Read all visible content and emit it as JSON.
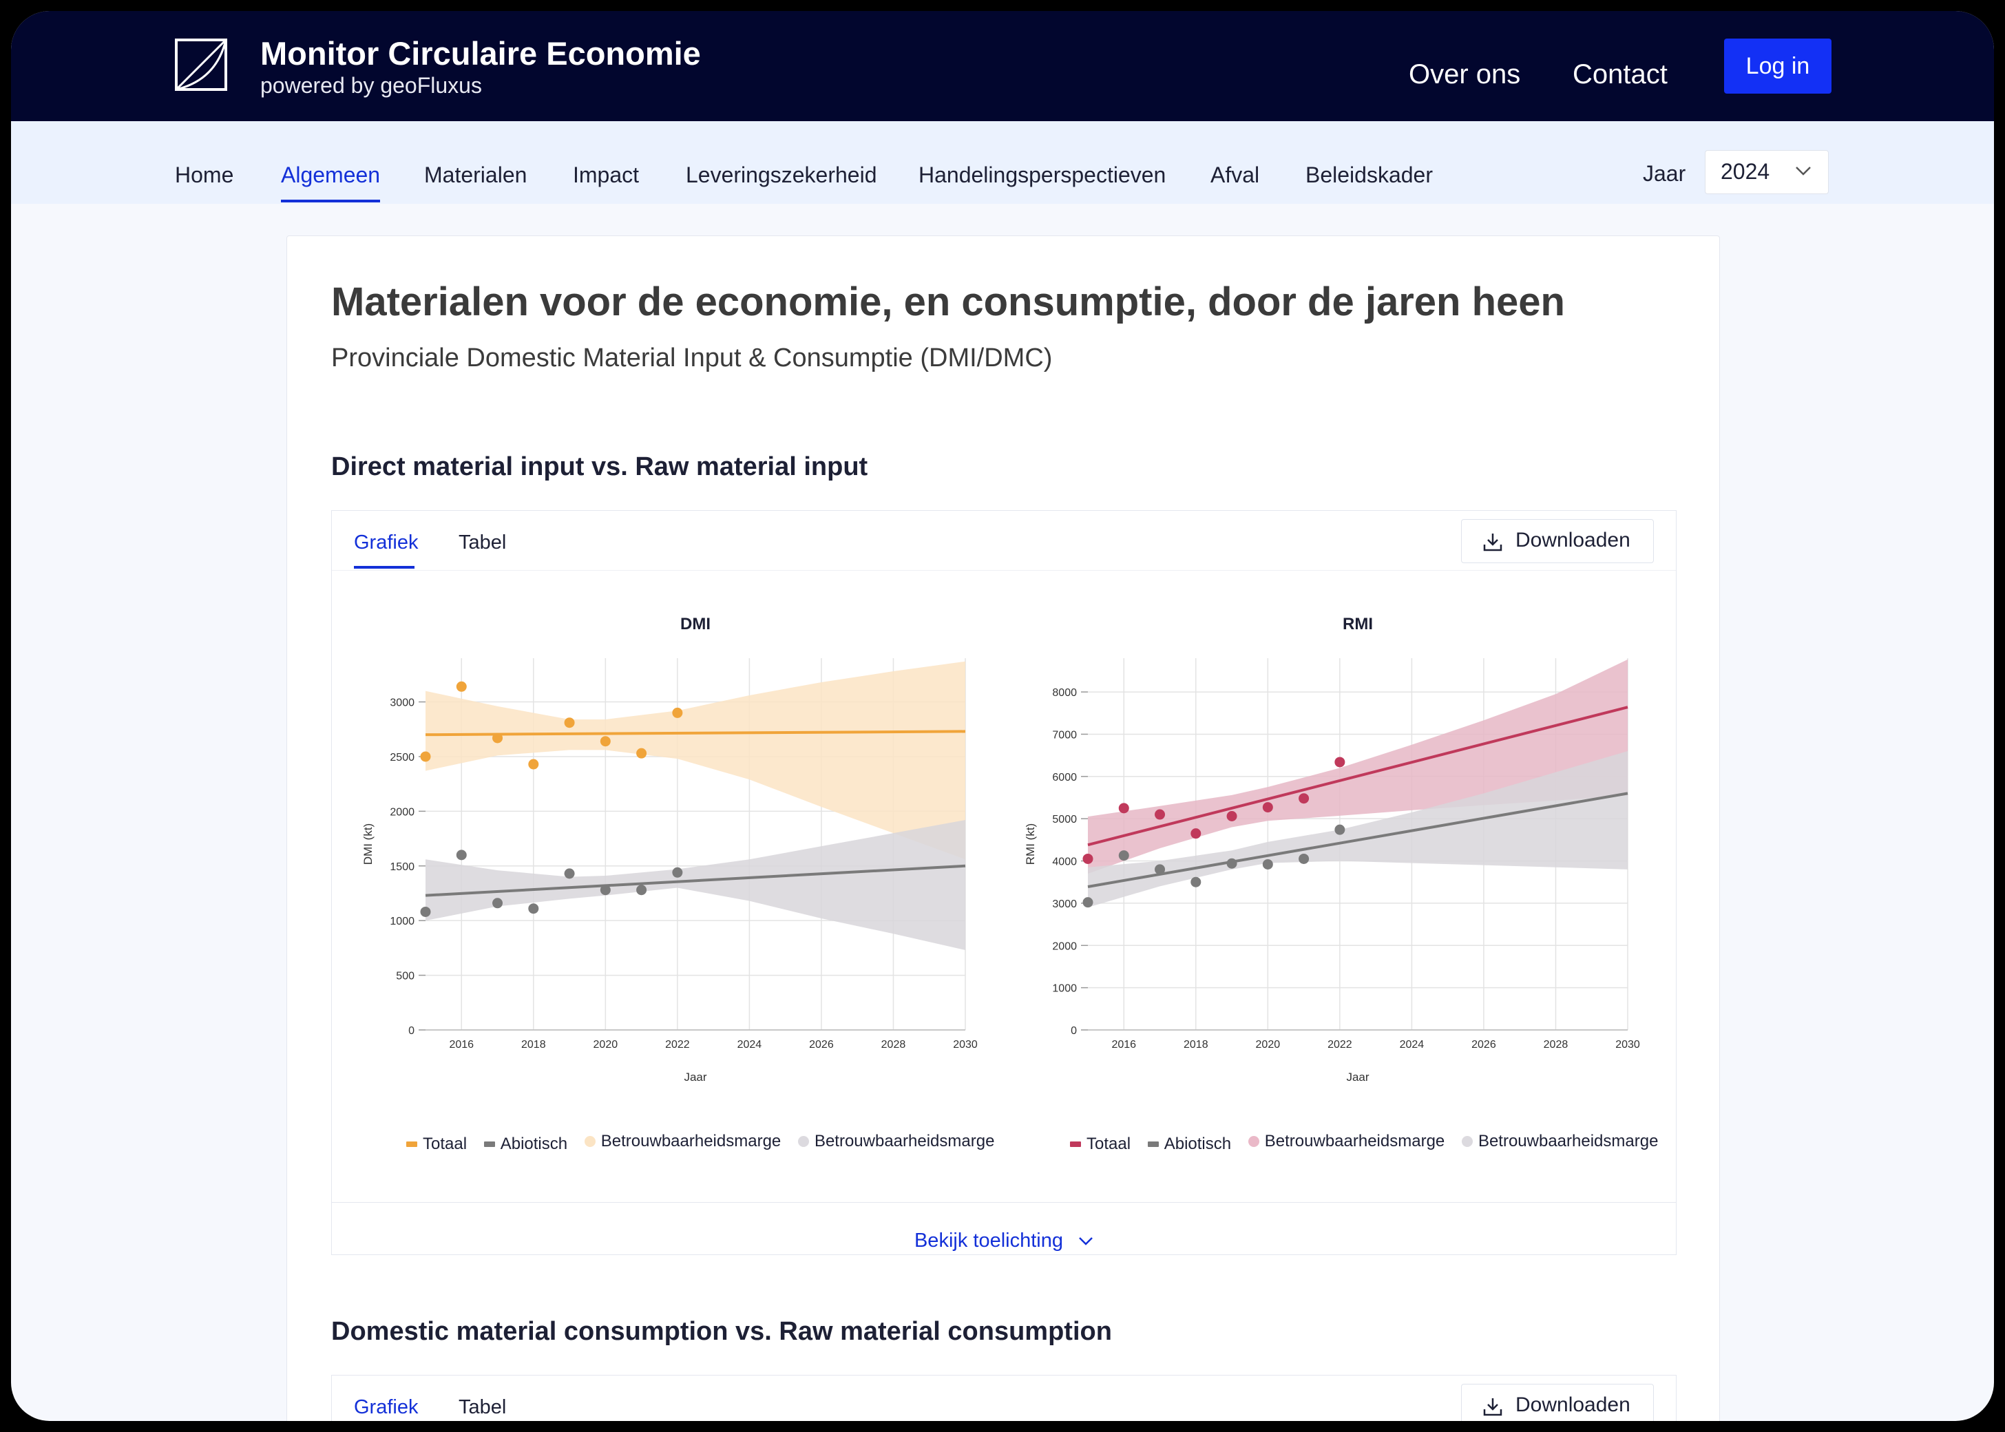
{
  "header": {
    "app_title": "Monitor Circulaire Economie",
    "app_subtitle": "powered by geoFluxus",
    "nav": [
      "Over ons",
      "Contact"
    ],
    "login_label": "Log in",
    "colors": {
      "bar_bg": "#02062e",
      "accent": "#1330f5"
    }
  },
  "subnav": {
    "items": [
      "Home",
      "Algemeen",
      "Materialen",
      "Impact",
      "Leveringszekerheid",
      "Handelingsperspectieven",
      "Afval",
      "Beleidskader"
    ],
    "active": "Algemeen",
    "year_label": "Jaar",
    "year_value": "2024"
  },
  "page": {
    "title": "Materialen voor de economie, en consumptie, door de jaren heen",
    "subtitle": "Provinciale Domestic Material Input & Consumptie (DMI/DMC)"
  },
  "section1": {
    "title": "Direct material input vs. Raw material input",
    "tabs": [
      "Grafiek",
      "Tabel"
    ],
    "download_label": "Downloaden",
    "toelichting_label": "Bekijk toelichting"
  },
  "section2": {
    "title": "Domestic material consumption vs. Raw material consumption",
    "tabs": [
      "Grafiek",
      "Tabel"
    ],
    "download_label": "Downloaden"
  },
  "chart_data": [
    {
      "type": "scatter",
      "title": "DMI",
      "xlabel": "Jaar",
      "ylabel": "DMI (kt)",
      "xlim": [
        2015,
        2030
      ],
      "ylim": [
        0,
        3400
      ],
      "xticks": [
        2016,
        2018,
        2020,
        2022,
        2024,
        2026,
        2028,
        2030
      ],
      "yticks": [
        0,
        500,
        1000,
        1500,
        2000,
        2500,
        3000
      ],
      "series": [
        {
          "name": "Totaal",
          "color": "#f0a43a",
          "points": [
            [
              2015,
              2500
            ],
            [
              2016,
              3140
            ],
            [
              2017,
              2670
            ],
            [
              2018,
              2430
            ],
            [
              2019,
              2810
            ],
            [
              2020,
              2640
            ],
            [
              2021,
              2530
            ],
            [
              2022,
              2900
            ]
          ],
          "trend": [
            [
              2015,
              2700
            ],
            [
              2030,
              2730
            ]
          ],
          "band_upper": [
            [
              2015,
              3100
            ],
            [
              2017,
              2960
            ],
            [
              2019,
              2840
            ],
            [
              2020,
              2840
            ],
            [
              2022,
              2920
            ],
            [
              2024,
              3060
            ],
            [
              2026,
              3180
            ],
            [
              2028,
              3280
            ],
            [
              2030,
              3370
            ]
          ],
          "band_lower": [
            [
              2015,
              2370
            ],
            [
              2017,
              2510
            ],
            [
              2019,
              2560
            ],
            [
              2020,
              2560
            ],
            [
              2022,
              2480
            ],
            [
              2024,
              2290
            ],
            [
              2026,
              2040
            ],
            [
              2028,
              1800
            ],
            [
              2030,
              1560
            ]
          ],
          "band_color": "#fbe4c4"
        },
        {
          "name": "Abiotisch",
          "color": "#7a7a7a",
          "points": [
            [
              2015,
              1080
            ],
            [
              2016,
              1600
            ],
            [
              2017,
              1160
            ],
            [
              2018,
              1110
            ],
            [
              2019,
              1430
            ],
            [
              2020,
              1280
            ],
            [
              2021,
              1280
            ],
            [
              2022,
              1440
            ]
          ],
          "trend": [
            [
              2015,
              1230
            ],
            [
              2030,
              1500
            ]
          ],
          "band_upper": [
            [
              2015,
              1560
            ],
            [
              2017,
              1460
            ],
            [
              2019,
              1400
            ],
            [
              2020,
              1410
            ],
            [
              2022,
              1470
            ],
            [
              2024,
              1560
            ],
            [
              2026,
              1680
            ],
            [
              2028,
              1800
            ],
            [
              2030,
              1920
            ]
          ],
          "band_lower": [
            [
              2015,
              1000
            ],
            [
              2017,
              1130
            ],
            [
              2019,
              1200
            ],
            [
              2020,
              1230
            ],
            [
              2022,
              1300
            ],
            [
              2024,
              1180
            ],
            [
              2026,
              1020
            ],
            [
              2028,
              880
            ],
            [
              2030,
              730
            ]
          ],
          "band_color": "#d8d6db"
        }
      ],
      "legend": [
        "Totaal",
        "Abiotisch",
        "Betrouwbaarheidsmarge",
        "Betrouwbaarheidsmarge"
      ]
    },
    {
      "type": "scatter",
      "title": "RMI",
      "xlabel": "Jaar",
      "ylabel": "RMI (kt)",
      "xlim": [
        2015,
        2030
      ],
      "ylim": [
        0,
        8800
      ],
      "xticks": [
        2016,
        2018,
        2020,
        2022,
        2024,
        2026,
        2028,
        2030
      ],
      "yticks": [
        0,
        1000,
        2000,
        3000,
        4000,
        5000,
        6000,
        7000,
        8000
      ],
      "series": [
        {
          "name": "Totaal",
          "color": "#c0395b",
          "points": [
            [
              2015,
              4050
            ],
            [
              2016,
              5250
            ],
            [
              2017,
              5100
            ],
            [
              2018,
              4650
            ],
            [
              2019,
              5060
            ],
            [
              2020,
              5270
            ],
            [
              2021,
              5480
            ],
            [
              2022,
              6340
            ]
          ],
          "trend": [
            [
              2015,
              4380
            ],
            [
              2030,
              7640
            ]
          ],
          "band_upper": [
            [
              2015,
              5050
            ],
            [
              2017,
              5300
            ],
            [
              2019,
              5560
            ],
            [
              2020,
              5750
            ],
            [
              2022,
              6200
            ],
            [
              2024,
              6750
            ],
            [
              2026,
              7330
            ],
            [
              2028,
              7950
            ],
            [
              2030,
              8770
            ]
          ],
          "band_lower": [
            [
              2015,
              3700
            ],
            [
              2017,
              4300
            ],
            [
              2019,
              4800
            ],
            [
              2020,
              4950
            ],
            [
              2022,
              5070
            ],
            [
              2024,
              5200
            ],
            [
              2026,
              5320
            ],
            [
              2028,
              5430
            ],
            [
              2030,
              5550
            ]
          ],
          "band_color": "#e6b7c6"
        },
        {
          "name": "Abiotisch",
          "color": "#7a7a7a",
          "points": [
            [
              2015,
              3020
            ],
            [
              2016,
              4130
            ],
            [
              2017,
              3800
            ],
            [
              2018,
              3500
            ],
            [
              2019,
              3940
            ],
            [
              2020,
              3920
            ],
            [
              2021,
              4050
            ],
            [
              2022,
              4740
            ]
          ],
          "trend": [
            [
              2015,
              3390
            ],
            [
              2030,
              5600
            ]
          ],
          "band_upper": [
            [
              2015,
              3850
            ],
            [
              2017,
              4000
            ],
            [
              2019,
              4250
            ],
            [
              2020,
              4450
            ],
            [
              2022,
              4740
            ],
            [
              2024,
              5150
            ],
            [
              2026,
              5600
            ],
            [
              2028,
              6100
            ],
            [
              2030,
              6600
            ]
          ],
          "band_lower": [
            [
              2015,
              2900
            ],
            [
              2017,
              3400
            ],
            [
              2019,
              3800
            ],
            [
              2020,
              3950
            ],
            [
              2022,
              4000
            ],
            [
              2024,
              3950
            ],
            [
              2026,
              3900
            ],
            [
              2028,
              3850
            ],
            [
              2030,
              3800
            ]
          ],
          "band_color": "#d8d6db"
        }
      ],
      "legend": [
        "Totaal",
        "Abiotisch",
        "Betrouwbaarheidsmarge",
        "Betrouwbaarheidsmarge"
      ]
    }
  ]
}
